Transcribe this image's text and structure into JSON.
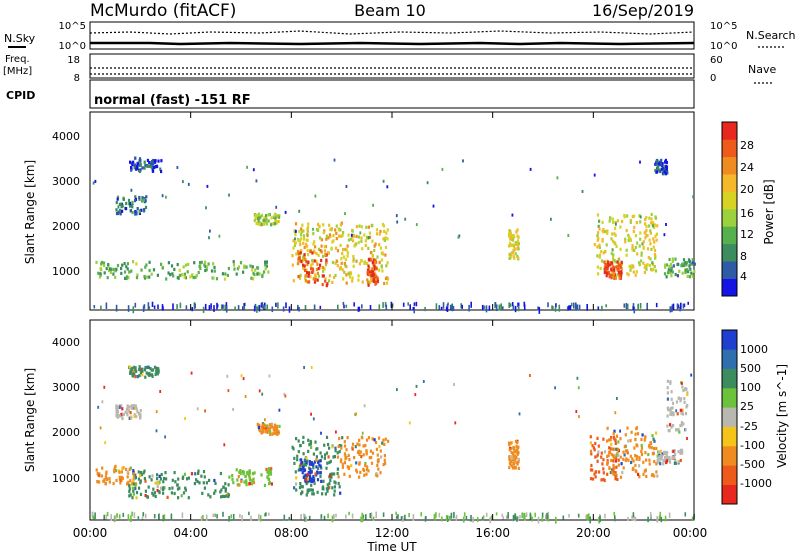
{
  "header": {
    "station": "McMurdo (fitACF)",
    "beam": "Beam 10",
    "date": "16/Sep/2019",
    "cpid_text": "normal (fast) -151 RF"
  },
  "params_panel": {
    "nsky_label": "N.Sky",
    "nsky_ticks": [
      "10^5",
      "10^0"
    ],
    "nsearch_label": "N.Search",
    "nsearch_ticks": [
      "10^5",
      "10^0"
    ],
    "freq_label": "Freq.",
    "freq_unit": "[MHz]",
    "freq_ticks": [
      "18",
      "8"
    ],
    "nave_label": "Nave",
    "nave_ticks": [
      "60",
      "0"
    ],
    "cpid_label": "CPID"
  },
  "chart_data": [
    {
      "type": "heatmap",
      "name": "power",
      "ylabel": "Slant Range [km]",
      "yticks": [
        "4000",
        "3000",
        "2000",
        "1000"
      ],
      "ylim": [
        180,
        4600
      ],
      "xlim_hours": [
        0,
        24
      ],
      "colorbar_label": "Power [dB]",
      "colorbar_ticks": [
        "28",
        "24",
        "20",
        "16",
        "12",
        "8",
        "4"
      ],
      "colorbar_colors": [
        "#e8281e",
        "#ee5a19",
        "#f08c1f",
        "#f5b82a",
        "#d8d225",
        "#9bd13d",
        "#56b04d",
        "#3c8c5e",
        "#2f5aa6",
        "#1414e6"
      ],
      "clusters": [
        {
          "t0": 0.2,
          "t1": 7.2,
          "r0": 850,
          "r1": 1250,
          "level": 0.35
        },
        {
          "t0": 1.0,
          "t1": 2.2,
          "r0": 2300,
          "r1": 2700,
          "level": 0.15
        },
        {
          "t0": 1.5,
          "t1": 2.8,
          "r0": 3250,
          "r1": 3550,
          "level": 0.1
        },
        {
          "t0": 6.5,
          "t1": 7.5,
          "r0": 2050,
          "r1": 2300,
          "level": 0.45
        },
        {
          "t0": 8.0,
          "t1": 11.8,
          "r0": 750,
          "r1": 2100,
          "level": 0.6
        },
        {
          "t0": 8.2,
          "t1": 9.4,
          "r0": 700,
          "r1": 1500,
          "level": 0.95
        },
        {
          "t0": 11.0,
          "t1": 11.4,
          "r0": 700,
          "r1": 1300,
          "level": 0.95
        },
        {
          "t0": 16.6,
          "t1": 17.0,
          "r0": 1300,
          "r1": 1950,
          "level": 0.55
        },
        {
          "t0": 20.0,
          "t1": 22.5,
          "r0": 900,
          "r1": 2300,
          "level": 0.55
        },
        {
          "t0": 20.4,
          "t1": 21.1,
          "r0": 850,
          "r1": 1250,
          "level": 0.9
        },
        {
          "t0": 22.8,
          "t1": 24.0,
          "r0": 900,
          "r1": 1300,
          "level": 0.3
        },
        {
          "t0": 22.4,
          "t1": 22.9,
          "r0": 3200,
          "r1": 3500,
          "level": 0.1
        }
      ]
    },
    {
      "type": "heatmap",
      "name": "velocity",
      "ylabel": "Slant Range [km]",
      "yticks": [
        "4000",
        "3000",
        "2000",
        "1000"
      ],
      "ylim": [
        180,
        4600
      ],
      "xlim_hours": [
        0,
        24
      ],
      "xticks": [
        "00:00",
        "04:00",
        "08:00",
        "12:00",
        "16:00",
        "20:00",
        "00:00"
      ],
      "xlabel": "Time UT",
      "colorbar_label": "Velocity [m s^-1]",
      "colorbar_ticks": [
        "1000",
        "500",
        "100",
        "25",
        "-25",
        "-100",
        "-500",
        "-1000"
      ],
      "colorbar_colors": [
        "#1f3fd0",
        "#2f6fb0",
        "#3c8c5e",
        "#6cc23a",
        "#b8b8b0",
        "#f5c419",
        "#f08c1f",
        "#ee5a19",
        "#e8281e"
      ],
      "clusters": [
        {
          "t0": 0.2,
          "t1": 1.8,
          "r0": 950,
          "r1": 1350,
          "color": "#f08c1f"
        },
        {
          "t0": 1.5,
          "t1": 5.5,
          "r0": 650,
          "r1": 1250,
          "color": "#3c8c5e"
        },
        {
          "t0": 5.5,
          "t1": 7.2,
          "r0": 900,
          "r1": 1300,
          "color": "#6cc23a"
        },
        {
          "t0": 1.0,
          "t1": 2.0,
          "r0": 2400,
          "r1": 2700,
          "color": "#b8b8b0"
        },
        {
          "t0": 1.5,
          "t1": 2.7,
          "r0": 3300,
          "r1": 3550,
          "color": "#3c8c5e"
        },
        {
          "t0": 6.6,
          "t1": 7.5,
          "r0": 2050,
          "r1": 2300,
          "color": "#f08c1f"
        },
        {
          "t0": 8.0,
          "t1": 10.0,
          "r0": 700,
          "r1": 2000,
          "color": "#3c8c5e"
        },
        {
          "t0": 8.3,
          "t1": 9.2,
          "r0": 1000,
          "r1": 1500,
          "color": "#1f3fd0"
        },
        {
          "t0": 9.8,
          "t1": 11.8,
          "r0": 1100,
          "r1": 2000,
          "color": "#f08c1f"
        },
        {
          "t0": 16.6,
          "t1": 17.0,
          "r0": 1300,
          "r1": 1900,
          "color": "#f08c1f"
        },
        {
          "t0": 19.8,
          "t1": 21.0,
          "r0": 1000,
          "r1": 2000,
          "color": "#ee5a19"
        },
        {
          "t0": 20.5,
          "t1": 22.5,
          "r0": 1100,
          "r1": 2200,
          "color": "#f08c1f"
        },
        {
          "t0": 22.5,
          "t1": 23.5,
          "r0": 1400,
          "r1": 1700,
          "color": "#b8b8b0"
        },
        {
          "t0": 22.9,
          "t1": 23.7,
          "r0": 2100,
          "r1": 3300,
          "color": "#b8b8b0"
        }
      ]
    }
  ]
}
